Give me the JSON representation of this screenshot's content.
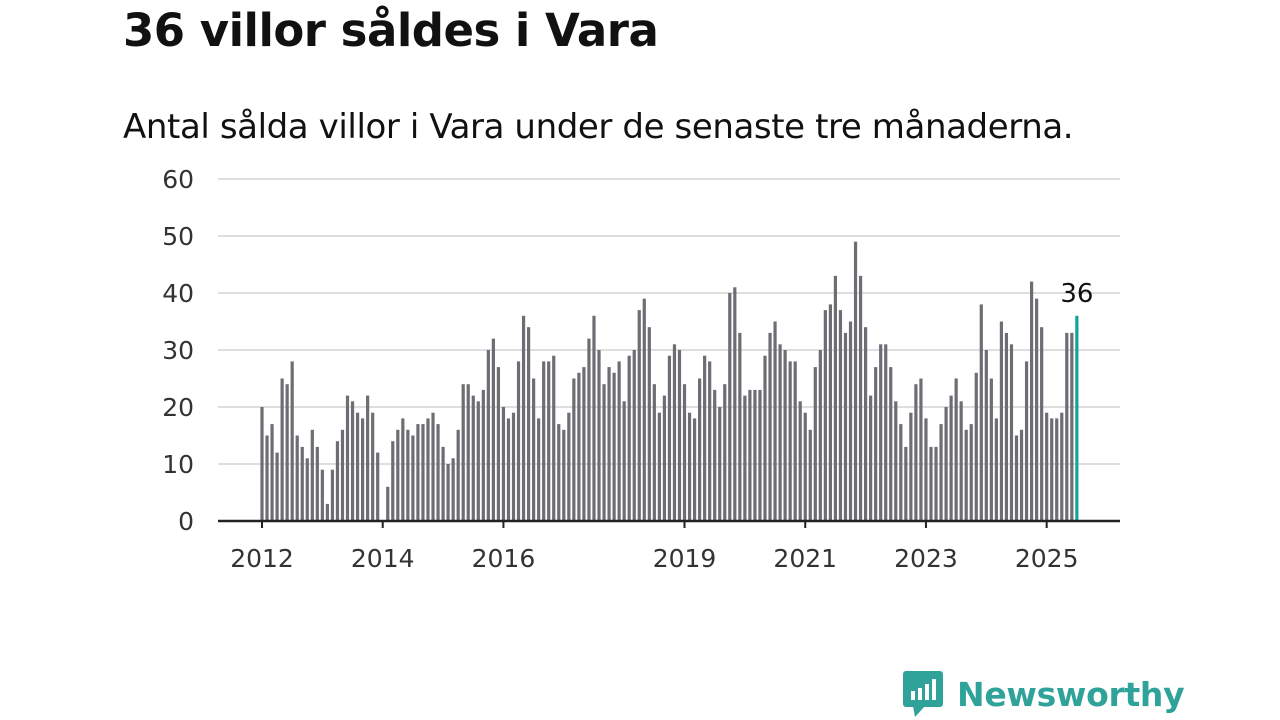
{
  "title": "36 villor såldes i Vara",
  "subtitle": "Antal sålda villor i Vara under de senaste tre månaderna.",
  "brand": {
    "name": "Newsworthy",
    "color": "#2fa39a"
  },
  "colors": {
    "bar": "#6e6d73",
    "highlight": "#14a39a",
    "grid": "#dedede",
    "axis": "#222222"
  },
  "chart_data": {
    "type": "bar",
    "x_start": "2012-01",
    "x_end": "2025-07",
    "xticks": [
      {
        "date": "2012-01",
        "label": "2012"
      },
      {
        "date": "2014-01",
        "label": "2014"
      },
      {
        "date": "2016-01",
        "label": "2016"
      },
      {
        "date": "2019-01",
        "label": "2019"
      },
      {
        "date": "2021-01",
        "label": "2021"
      },
      {
        "date": "2023-01",
        "label": "2023"
      },
      {
        "date": "2025-01",
        "label": "2025"
      }
    ],
    "yticks": [
      0,
      10,
      20,
      30,
      40,
      50,
      60
    ],
    "ylim": [
      0,
      60
    ],
    "values": [
      20,
      15,
      17,
      12,
      25,
      24,
      28,
      15,
      13,
      11,
      16,
      13,
      9,
      3,
      9,
      14,
      16,
      22,
      21,
      19,
      18,
      22,
      19,
      12,
      0,
      6,
      14,
      16,
      18,
      16,
      15,
      17,
      17,
      18,
      19,
      17,
      13,
      10,
      11,
      16,
      24,
      24,
      22,
      21,
      23,
      30,
      32,
      27,
      20,
      18,
      19,
      28,
      36,
      34,
      25,
      18,
      28,
      28,
      29,
      17,
      16,
      19,
      25,
      26,
      27,
      32,
      36,
      30,
      24,
      27,
      26,
      28,
      21,
      29,
      30,
      37,
      39,
      34,
      24,
      19,
      22,
      29,
      31,
      30,
      24,
      19,
      18,
      25,
      29,
      28,
      23,
      20,
      24,
      40,
      41,
      33,
      22,
      23,
      23,
      23,
      29,
      33,
      35,
      31,
      30,
      28,
      28,
      21,
      19,
      16,
      27,
      30,
      37,
      38,
      43,
      37,
      33,
      35,
      49,
      43,
      34,
      22,
      27,
      31,
      31,
      27,
      21,
      17,
      13,
      19,
      24,
      25,
      18,
      13,
      13,
      17,
      20,
      22,
      25,
      21,
      16,
      17,
      26,
      38,
      30,
      25,
      18,
      35,
      33,
      31,
      15,
      16,
      28,
      42,
      39,
      34,
      19,
      18,
      18,
      19,
      33,
      33,
      36
    ],
    "highlight": {
      "date": "2025-07",
      "value": 36,
      "label": "36"
    }
  }
}
